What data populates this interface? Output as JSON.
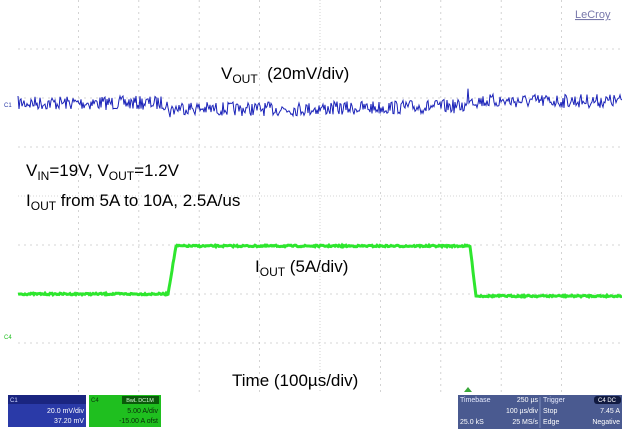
{
  "brand": "LeCroy",
  "channel_labels": {
    "c1": "C1",
    "c4": "C4"
  },
  "annotations": {
    "vout_label": {
      "main": "V",
      "sub": "OUT",
      "rest": "  (20mV/div)"
    },
    "conditions_line1": {
      "v1": "V",
      "v1_sub": "IN",
      "v1_rest": "=19V, ",
      "v2": "V",
      "v2_sub": "OUT",
      "v2_rest": "=1.2V"
    },
    "conditions_line2": {
      "main": "I",
      "sub": "OUT",
      "rest": " from 5A to 10A, 2.5A/us"
    },
    "iout_label": {
      "main": "I",
      "sub": "OUT",
      "rest": " (5A/div)"
    },
    "time_label": "Time (100µs/div)"
  },
  "status_bar": {
    "c1_box": {
      "title": "C1",
      "scale": "20.0 mV/div",
      "offset": "37.20 mV"
    },
    "c4_box": {
      "title": "C4",
      "coupling": "BwL DC1M",
      "scale": "5.00 A/div",
      "offset": "-15.00 A ofst"
    },
    "timebase": {
      "label": "Timebase",
      "delay": "250 µs",
      "per_div": "100 µs/div",
      "span": "25.0 kS",
      "rate": "25 MS/s"
    },
    "trigger": {
      "label": "Trigger",
      "channels": "C4 DC",
      "mode": "Stop",
      "level": "7.45 A",
      "type": "Edge",
      "slope": "Negative"
    }
  },
  "colors": {
    "ch1_trace": "#1a22b8",
    "ch4_trace": "#2ee62e",
    "grid": "#c8c8c8",
    "c1_panel": "#2a3aa8",
    "c4_panel": "#1fbf1f",
    "status_panel": "#4a5a90"
  }
}
